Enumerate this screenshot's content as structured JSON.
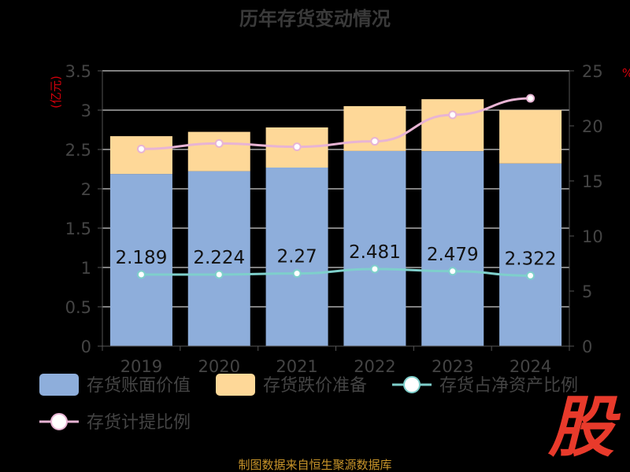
{
  "chart_data": {
    "type": "bar",
    "title": "历年存货变动情况",
    "categories": [
      "2019",
      "2020",
      "2021",
      "2022",
      "2023",
      "2024"
    ],
    "stacked": true,
    "y_left": {
      "unit": "(亿元)",
      "range": [
        0,
        3.5
      ],
      "ticks": [
        "0",
        "0.5",
        "1",
        "1.5",
        "2",
        "2.5",
        "3",
        "3.5"
      ]
    },
    "y_right": {
      "unit": "%",
      "range": [
        0,
        25
      ],
      "ticks": [
        "0",
        "5",
        "10",
        "15",
        "20",
        "25"
      ]
    },
    "bar_series": [
      {
        "name": "存货账面价值",
        "color": "#8eaedb",
        "values": [
          2.189,
          2.224,
          2.27,
          2.481,
          2.479,
          2.322
        ],
        "labels": [
          "2.189",
          "2.224",
          "2.27",
          "2.481",
          "2.479",
          "2.322"
        ]
      },
      {
        "name": "存货跌价准备",
        "color": "#fed898",
        "values": [
          0.48,
          0.5,
          0.51,
          0.57,
          0.66,
          0.68
        ]
      }
    ],
    "line_series": [
      {
        "name": "存货占净资产比例",
        "color": "#7ecfcb",
        "axis": "right",
        "values": [
          6.5,
          6.5,
          6.6,
          7.0,
          6.8,
          6.4
        ]
      },
      {
        "name": "存货计提比例",
        "color": "#e8b4d4",
        "axis": "right",
        "values": [
          17.9,
          18.4,
          18.1,
          18.6,
          21.0,
          22.5
        ]
      }
    ],
    "grid": true,
    "legend_position": "bottom"
  },
  "footer": {
    "source": "制图数据来自恒生聚源数据库"
  },
  "logo": {
    "text": "股"
  }
}
